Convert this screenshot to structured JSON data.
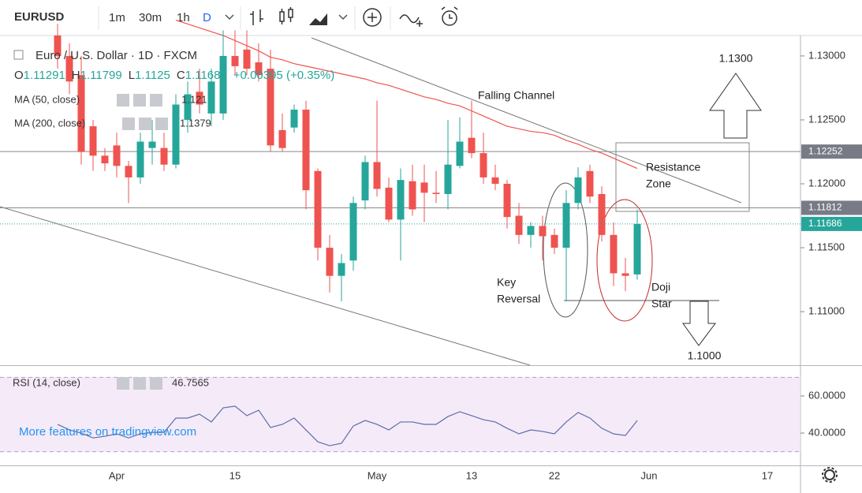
{
  "toolbar": {
    "symbol": "EURUSD",
    "intervals": [
      "1m",
      "30m",
      "1h",
      "D"
    ]
  },
  "chart_data": {
    "type": "candlestick",
    "symbol_name": "Euro / U.S. Dollar · 1D · FXCM",
    "ohlc_labels": [
      "O",
      "H",
      "L",
      "C"
    ],
    "change": "+0.00395 (+0.35%)",
    "up_color": "#26a69a",
    "down_color": "#ef5350",
    "categories": [
      null,
      null,
      null,
      null,
      null,
      "Apr",
      null,
      null,
      null,
      null,
      null,
      null,
      null,
      null,
      null,
      "15",
      null,
      null,
      null,
      null,
      null,
      null,
      null,
      null,
      null,
      null,
      null,
      "May",
      null,
      null,
      null,
      null,
      null,
      null,
      null,
      "13",
      null,
      null,
      null,
      null,
      null,
      null,
      "22",
      null,
      null,
      null,
      null,
      null,
      null,
      null,
      "Jun",
      null,
      null,
      null,
      null,
      null,
      null,
      null,
      null,
      null,
      "17",
      null,
      null
    ],
    "open": [
      1.1316,
      1.13,
      1.1285,
      1.1245,
      1.1222,
      1.123,
      1.1214,
      1.1205,
      1.1228,
      1.1228,
      1.1215,
      1.125,
      1.1272,
      1.1255,
      1.1255,
      1.13,
      1.1305,
      1.1295,
      1.129,
      1.1242,
      1.1244,
      1.1258,
      1.121,
      1.115,
      1.1128,
      1.114,
      1.1187,
      1.1217,
      1.1197,
      1.1172,
      1.1202,
      1.1201,
      1.1193,
      1.1192,
      1.1214,
      1.1236,
      1.1224,
      1.1205,
      1.12,
      1.1175,
      1.116,
      1.1167,
      1.116,
      1.115,
      1.1185,
      1.121,
      1.1192,
      1.116,
      1.113,
      1.11291,
      null,
      null,
      null,
      null,
      null,
      null,
      null,
      null,
      null,
      null,
      null,
      null,
      null
    ],
    "high": [
      1.1325,
      1.131,
      1.13,
      1.125,
      1.1228,
      1.124,
      1.1218,
      1.124,
      1.125,
      1.124,
      1.127,
      1.128,
      1.129,
      1.129,
      1.132,
      1.132,
      1.132,
      1.131,
      1.1305,
      1.1255,
      1.1262,
      1.1265,
      1.1212,
      1.116,
      1.1145,
      1.119,
      1.1222,
      1.1265,
      1.1205,
      1.1212,
      1.1215,
      1.1215,
      1.121,
      1.125,
      1.1252,
      1.1265,
      1.124,
      1.1215,
      1.1203,
      1.1185,
      1.117,
      1.1175,
      1.1165,
      1.1195,
      1.1213,
      1.1215,
      1.1198,
      1.117,
      1.1142,
      1.11799,
      null,
      null,
      null,
      null,
      null,
      null,
      null,
      null,
      null,
      null,
      null,
      null,
      null
    ],
    "low": [
      1.129,
      1.127,
      1.1215,
      1.121,
      1.121,
      1.1205,
      1.1185,
      1.12,
      1.1215,
      1.121,
      1.1212,
      1.124,
      1.1255,
      1.1245,
      1.125,
      1.1285,
      1.1285,
      1.128,
      1.1225,
      1.1225,
      1.124,
      1.118,
      1.114,
      1.1115,
      1.1108,
      1.1132,
      1.118,
      1.119,
      1.117,
      1.114,
      1.1175,
      1.117,
      1.1185,
      1.118,
      1.1212,
      1.122,
      1.12,
      1.1195,
      1.1165,
      1.1153,
      1.115,
      1.114,
      1.1145,
      1.1108,
      1.118,
      1.1185,
      1.1155,
      1.112,
      1.1116,
      1.1125,
      null,
      null,
      null,
      null,
      null,
      null,
      null,
      null,
      null,
      null,
      null,
      null,
      null
    ],
    "close": [
      1.13,
      1.128,
      1.1225,
      1.1222,
      1.1216,
      1.1214,
      1.1205,
      1.1233,
      1.1233,
      1.1215,
      1.1262,
      1.127,
      1.1262,
      1.128,
      1.13,
      1.1292,
      1.129,
      1.1285,
      1.123,
      1.1228,
      1.1258,
      1.1195,
      1.115,
      1.1128,
      1.1138,
      1.1185,
      1.1217,
      1.1196,
      1.1172,
      1.1203,
      1.118,
      1.1193,
      1.1192,
      1.1215,
      1.1233,
      1.1224,
      1.1205,
      1.12,
      1.1174,
      1.116,
      1.1167,
      1.1159,
      1.115,
      1.1185,
      1.1205,
      1.119,
      1.116,
      1.113,
      1.1128,
      1.11686,
      null,
      null,
      null,
      null,
      null,
      null,
      null,
      null,
      null,
      null,
      null,
      null,
      null
    ],
    "ylim": [
      1.10581,
      1.1316
    ],
    "yticks": [
      {
        "value": 1.13,
        "label": "1.13000"
      },
      {
        "value": 1.125,
        "label": "1.12500"
      },
      {
        "value": 1.12,
        "label": "1.12000"
      },
      {
        "value": 1.115,
        "label": "1.11500"
      },
      {
        "value": 1.11,
        "label": "1.11000"
      }
    ],
    "grid": false,
    "levels": [
      {
        "value": 1.12252,
        "label": "1.12252"
      },
      {
        "value": 1.11812,
        "label": "1.11812"
      }
    ],
    "indicators": [
      {
        "name": "MA (50, close)",
        "color": "#ef5350",
        "last": 1.121,
        "values": [
          null,
          null,
          null,
          null,
          null,
          null,
          null,
          null,
          null,
          null,
          1.1328,
          1.1325,
          1.1322,
          1.1319,
          1.1316,
          1.1312,
          1.1308,
          1.1304,
          1.1299,
          1.1297,
          1.1294,
          1.1292,
          1.129,
          1.1288,
          1.1286,
          1.1284,
          1.1282,
          1.1279,
          1.1277,
          1.1274,
          1.1271,
          1.1268,
          1.1266,
          1.1263,
          1.1261,
          1.1257,
          1.1253,
          1.1249,
          1.1245,
          1.1243,
          1.1241,
          1.124,
          1.1238,
          1.1234,
          1.1231,
          1.1227,
          1.1224,
          1.122,
          1.1216,
          1.1212,
          null,
          null,
          null,
          null,
          null,
          null,
          null,
          null,
          null,
          null,
          null,
          null,
          null
        ]
      },
      {
        "name": "MA (200, close)",
        "color": "#26a69a",
        "last": 1.1379
      }
    ],
    "annotations": {
      "target_up": "1.1300",
      "channel": "Falling Channel",
      "resistance": [
        "Resistance",
        "Zone"
      ],
      "reversal": [
        "Key",
        "Reversal"
      ],
      "doji": [
        "Doji",
        "Star"
      ],
      "target_down": "1.1000"
    },
    "rsi": {
      "name": "RSI (14, close)",
      "color": "#5b6fa8",
      "values": [
        44.7,
        41.7,
        40.0,
        37.4,
        38.3,
        39.6,
        37.4,
        39.6,
        40.4,
        40.4,
        48.1,
        48.1,
        50.2,
        46.0,
        53.6,
        54.5,
        49.4,
        52.3,
        43.0,
        44.7,
        48.1,
        41.7,
        35.3,
        33.2,
        34.5,
        43.8,
        46.8,
        44.7,
        41.7,
        46.0,
        46.0,
        44.7,
        44.7,
        48.9,
        51.5,
        49.4,
        47.2,
        46.0,
        42.6,
        39.6,
        41.7,
        40.9,
        39.6,
        46.0,
        51.1,
        48.1,
        42.6,
        39.6,
        38.7,
        46.7565,
        null,
        null,
        null,
        null,
        null,
        null,
        null,
        null,
        null,
        null,
        null,
        null,
        null
      ],
      "ylim": [
        22.6,
        75.7
      ],
      "yticks": [
        {
          "value": 60,
          "label": "60.0000"
        },
        {
          "value": 40,
          "label": "40.0000"
        }
      ],
      "band_levels": [
        30,
        70
      ]
    }
  },
  "watermark": "More features on tradingview.com"
}
